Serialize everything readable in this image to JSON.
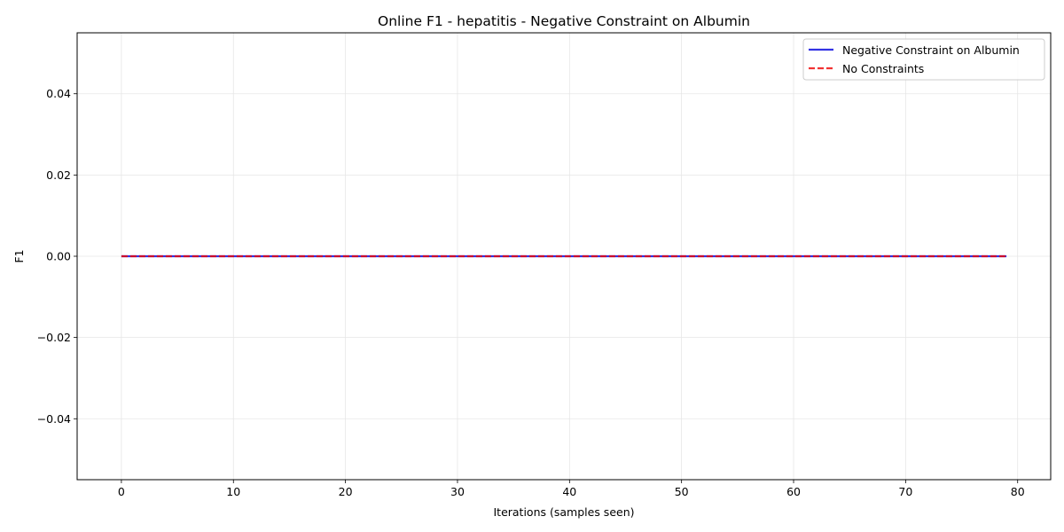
{
  "chart_data": {
    "type": "line",
    "title": "Online F1 - hepatitis - Negative Constraint on Albumin",
    "xlabel": "Iterations (samples seen)",
    "ylabel": "F1",
    "xlim": [
      -3.95,
      82.95
    ],
    "ylim": [
      -0.055,
      0.055
    ],
    "xticks": [
      0,
      10,
      20,
      30,
      40,
      50,
      60,
      70,
      80
    ],
    "yticks": [
      -0.04,
      -0.02,
      0.0,
      0.02,
      0.04
    ],
    "ytick_labels": [
      "−0.04",
      "−0.02",
      "0.00",
      "0.02",
      "0.04"
    ],
    "grid": true,
    "legend_position": "top-right",
    "series": [
      {
        "name": "Negative Constraint on Albumin",
        "color": "#0000dd",
        "style": "solid",
        "x": [
          0,
          79
        ],
        "y": [
          0.0,
          0.0
        ]
      },
      {
        "name": "No Constraints",
        "color": "#ee0000",
        "style": "dashed",
        "x": [
          0,
          79
        ],
        "y": [
          0.0,
          0.0
        ]
      }
    ]
  }
}
